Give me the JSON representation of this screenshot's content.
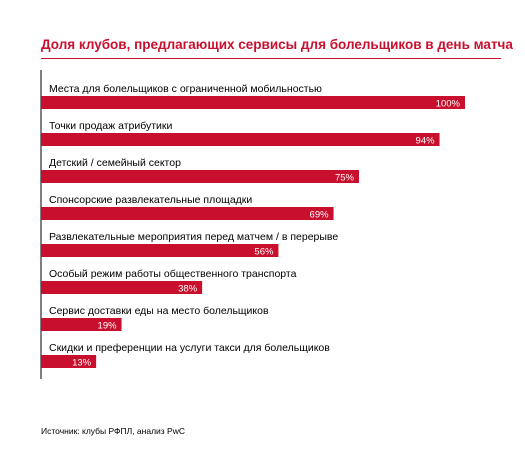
{
  "header": {
    "title": "Доля клубов, предлагающих сервисы для болельщиков в день матча"
  },
  "footer": {
    "source": "Источник: клубы РФПЛ, анализ PwC"
  },
  "colors": {
    "accent": "#c8102e",
    "bar": "#c8102e",
    "bar_label": "#ffffff",
    "axis": "#000000"
  },
  "chart_data": {
    "type": "bar",
    "orientation": "horizontal",
    "categories": [
      "Места для болельщиков с ограниченной мобильностью",
      "Точки продаж атрибутики",
      "Детский / семейный сектор",
      "Спонсорские развлекательные площадки",
      "Развлекательные мероприятия перед матчем / в перерыве",
      "Особый режим работы общественного транспорта",
      "Сервис доставки еды на место болельщиков",
      "Скидки и преференции на услуги такси для болельщиков"
    ],
    "values": [
      100,
      94,
      75,
      69,
      56,
      38,
      19,
      13
    ],
    "value_labels": [
      "100%",
      "94%",
      "75%",
      "69%",
      "56%",
      "38%",
      "19%",
      "13%"
    ],
    "unit": "%",
    "xlim": [
      0,
      100
    ],
    "grid": false,
    "legend": "none"
  }
}
